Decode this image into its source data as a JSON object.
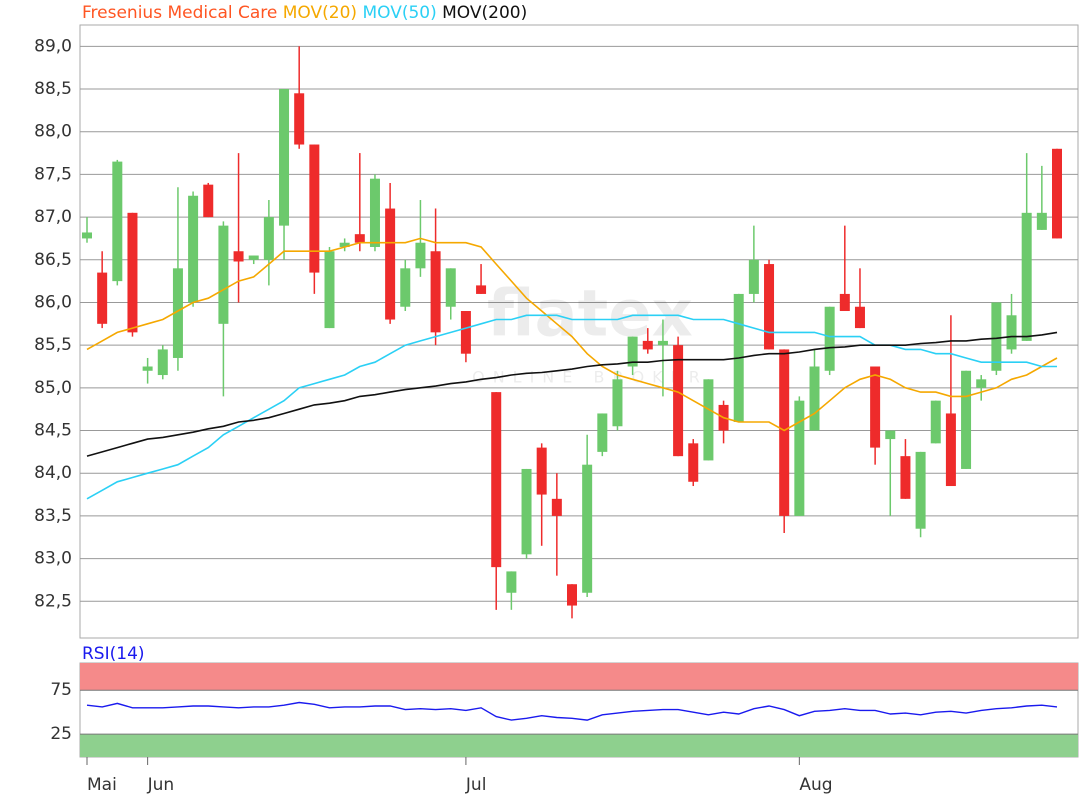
{
  "chart_data": [
    {
      "type": "candlestick",
      "categories": [
        "Mai",
        null,
        null,
        null,
        "Jun",
        null,
        null,
        null,
        null,
        null,
        null,
        null,
        null,
        null,
        null,
        null,
        null,
        null,
        null,
        null,
        null,
        null,
        null,
        null,
        null,
        "Jul",
        null,
        null,
        null,
        null,
        null,
        null,
        null,
        null,
        null,
        null,
        null,
        null,
        null,
        null,
        null,
        null,
        null,
        null,
        null,
        null,
        null,
        "Aug",
        null,
        null,
        null,
        null,
        null,
        null,
        null,
        null,
        null,
        null,
        null,
        null,
        null,
        null,
        null,
        null,
        null
      ],
      "up_color": "#6cc96c",
      "down_color": "#ee2b2b",
      "watermark": "flatex",
      "watermark_sub": "ONLINE BROKER",
      "series": [
        {
          "name": "Fresenius Medical Care",
          "color": "#ff5522",
          "open": [
            86.75,
            86.35,
            86.25,
            87.05,
            85.2,
            85.15,
            85.35,
            86.0,
            87.38,
            85.75,
            86.6,
            86.5,
            86.5,
            86.9,
            88.45,
            87.85,
            85.7,
            86.65,
            86.8,
            86.65,
            87.1,
            85.95,
            86.4,
            86.6,
            85.95,
            85.9,
            86.2,
            84.95,
            82.6,
            83.05,
            84.3,
            83.7,
            82.7,
            82.6,
            84.25,
            84.55,
            85.25,
            85.55,
            85.5,
            85.5,
            84.35,
            84.15,
            84.8,
            84.6,
            86.1,
            86.45,
            85.45,
            83.5,
            84.5,
            85.2,
            86.1,
            85.95,
            85.25,
            84.4,
            84.2,
            83.35,
            84.35,
            84.7,
            84.05,
            85.0,
            85.2,
            85.45,
            85.55,
            86.85,
            87.8
          ],
          "high": [
            87.0,
            86.6,
            87.67,
            87.05,
            85.35,
            85.5,
            87.35,
            87.3,
            87.4,
            86.95,
            87.75,
            86.55,
            87.2,
            88.5,
            89.0,
            87.85,
            86.65,
            86.75,
            87.75,
            87.5,
            87.4,
            86.5,
            87.2,
            87.1,
            86.4,
            85.9,
            86.45,
            84.95,
            82.85,
            84.05,
            84.35,
            84.0,
            82.7,
            84.45,
            84.7,
            85.2,
            85.6,
            85.7,
            85.8,
            85.6,
            84.4,
            85.1,
            84.85,
            86.1,
            86.9,
            86.5,
            85.45,
            84.9,
            85.45,
            85.95,
            86.9,
            86.4,
            85.25,
            84.5,
            84.4,
            84.25,
            84.85,
            85.85,
            85.2,
            85.15,
            86.0,
            86.1,
            87.75,
            87.6,
            87.8
          ],
          "low": [
            86.7,
            85.7,
            86.2,
            85.6,
            85.05,
            85.1,
            85.2,
            85.95,
            87.0,
            84.9,
            86.0,
            86.45,
            86.2,
            86.5,
            87.8,
            86.1,
            85.7,
            86.6,
            86.6,
            86.6,
            85.75,
            85.9,
            86.3,
            85.5,
            85.8,
            85.3,
            86.1,
            82.4,
            82.4,
            83.0,
            83.15,
            82.8,
            82.3,
            82.55,
            84.2,
            84.5,
            85.15,
            85.4,
            84.9,
            84.2,
            83.85,
            84.15,
            84.35,
            84.6,
            86.0,
            85.45,
            83.3,
            83.5,
            84.5,
            85.15,
            85.9,
            85.7,
            84.1,
            83.5,
            83.7,
            83.25,
            84.35,
            83.85,
            84.05,
            84.85,
            85.15,
            85.4,
            85.55,
            86.85,
            86.75
          ],
          "close": [
            86.82,
            85.75,
            87.65,
            85.65,
            85.25,
            85.45,
            86.4,
            87.25,
            87.0,
            86.9,
            86.48,
            86.55,
            87.0,
            88.5,
            87.85,
            86.35,
            86.6,
            86.7,
            86.7,
            87.45,
            85.8,
            86.4,
            86.7,
            85.65,
            86.4,
            85.4,
            86.1,
            82.9,
            82.85,
            84.05,
            83.75,
            83.5,
            82.45,
            84.1,
            84.7,
            85.1,
            85.6,
            85.45,
            85.55,
            84.2,
            83.9,
            85.1,
            84.5,
            86.1,
            86.5,
            85.45,
            83.5,
            84.85,
            85.25,
            85.95,
            85.9,
            85.7,
            84.3,
            84.5,
            83.7,
            84.25,
            84.85,
            83.85,
            85.2,
            85.1,
            86.0,
            85.85,
            87.05,
            87.05,
            86.75
          ]
        },
        {
          "name": "MOV(20)",
          "color": "#f5a800",
          "values": [
            85.45,
            85.55,
            85.65,
            85.7,
            85.75,
            85.8,
            85.9,
            86.0,
            86.05,
            86.15,
            86.25,
            86.3,
            86.45,
            86.6,
            86.6,
            86.6,
            86.6,
            86.65,
            86.7,
            86.7,
            86.7,
            86.7,
            86.75,
            86.7,
            86.7,
            86.7,
            86.65,
            86.45,
            86.25,
            86.05,
            85.9,
            85.75,
            85.6,
            85.4,
            85.25,
            85.15,
            85.1,
            85.05,
            85.0,
            84.95,
            84.85,
            84.75,
            84.65,
            84.6,
            84.6,
            84.6,
            84.5,
            84.6,
            84.7,
            84.85,
            85.0,
            85.1,
            85.15,
            85.1,
            85.0,
            84.95,
            84.95,
            84.9,
            84.9,
            84.95,
            85.0,
            85.1,
            85.15,
            85.25,
            85.35
          ]
        },
        {
          "name": "MOV(50)",
          "color": "#2bd0f5",
          "values": [
            83.7,
            83.8,
            83.9,
            83.95,
            84.0,
            84.05,
            84.1,
            84.2,
            84.3,
            84.45,
            84.55,
            84.65,
            84.75,
            84.85,
            85.0,
            85.05,
            85.1,
            85.15,
            85.25,
            85.3,
            85.4,
            85.5,
            85.55,
            85.6,
            85.65,
            85.7,
            85.75,
            85.8,
            85.8,
            85.85,
            85.85,
            85.85,
            85.8,
            85.8,
            85.8,
            85.8,
            85.85,
            85.85,
            85.85,
            85.85,
            85.8,
            85.8,
            85.8,
            85.75,
            85.7,
            85.65,
            85.65,
            85.65,
            85.65,
            85.6,
            85.6,
            85.6,
            85.5,
            85.5,
            85.45,
            85.45,
            85.4,
            85.4,
            85.35,
            85.3,
            85.3,
            85.3,
            85.3,
            85.25,
            85.25
          ]
        },
        {
          "name": "MOV(200)",
          "color": "#111111",
          "values": [
            84.2,
            84.25,
            84.3,
            84.35,
            84.4,
            84.42,
            84.45,
            84.48,
            84.52,
            84.55,
            84.6,
            84.62,
            84.65,
            84.7,
            84.75,
            84.8,
            84.82,
            84.85,
            84.9,
            84.92,
            84.95,
            84.98,
            85.0,
            85.02,
            85.05,
            85.07,
            85.1,
            85.12,
            85.15,
            85.17,
            85.18,
            85.2,
            85.22,
            85.25,
            85.27,
            85.28,
            85.3,
            85.3,
            85.32,
            85.33,
            85.33,
            85.33,
            85.33,
            85.35,
            85.38,
            85.4,
            85.4,
            85.42,
            85.45,
            85.47,
            85.48,
            85.5,
            85.5,
            85.5,
            85.5,
            85.52,
            85.53,
            85.55,
            85.55,
            85.57,
            85.58,
            85.6,
            85.6,
            85.62,
            85.65
          ]
        }
      ],
      "ylim": [
        82.07,
        89.25
      ],
      "yticks": [
        {
          "value": 82.5,
          "label": "82,5"
        },
        {
          "value": 83,
          "label": "83,0"
        },
        {
          "value": 83.5,
          "label": "83,5"
        },
        {
          "value": 84,
          "label": "84,0"
        },
        {
          "value": 84.5,
          "label": "84,5"
        },
        {
          "value": 85,
          "label": "85,0"
        },
        {
          "value": 85.5,
          "label": "85,5"
        },
        {
          "value": 86,
          "label": "86,0"
        },
        {
          "value": 86.5,
          "label": "86,5"
        },
        {
          "value": 87,
          "label": "87,0"
        },
        {
          "value": 87.5,
          "label": "87,5"
        },
        {
          "value": 88,
          "label": "88,0"
        },
        {
          "value": 88.5,
          "label": "88,5"
        },
        {
          "value": 89,
          "label": "89,0"
        }
      ],
      "grid": true
    },
    {
      "type": "line",
      "series": [
        {
          "name": "RSI(14)",
          "color": "#1a1aee",
          "values": [
            58,
            56,
            60,
            55,
            55,
            55,
            56,
            57,
            57,
            56,
            55,
            56,
            56,
            58,
            61,
            59,
            55,
            56,
            56,
            57,
            57,
            53,
            54,
            53,
            54,
            52,
            55,
            45,
            41,
            43,
            46,
            44,
            43,
            41,
            47,
            49,
            51,
            52,
            53,
            53,
            50,
            47,
            50,
            48,
            54,
            57,
            53,
            46,
            51,
            52,
            54,
            52,
            52,
            48,
            49,
            47,
            50,
            51,
            49,
            52,
            54,
            55,
            57,
            58,
            56
          ]
        }
      ],
      "ylim": [
        -1,
        106
      ],
      "yticks": [
        25,
        75
      ],
      "grid": true,
      "high_band_color": "#f58a8a",
      "low_band_color": "#8ed08e"
    }
  ]
}
